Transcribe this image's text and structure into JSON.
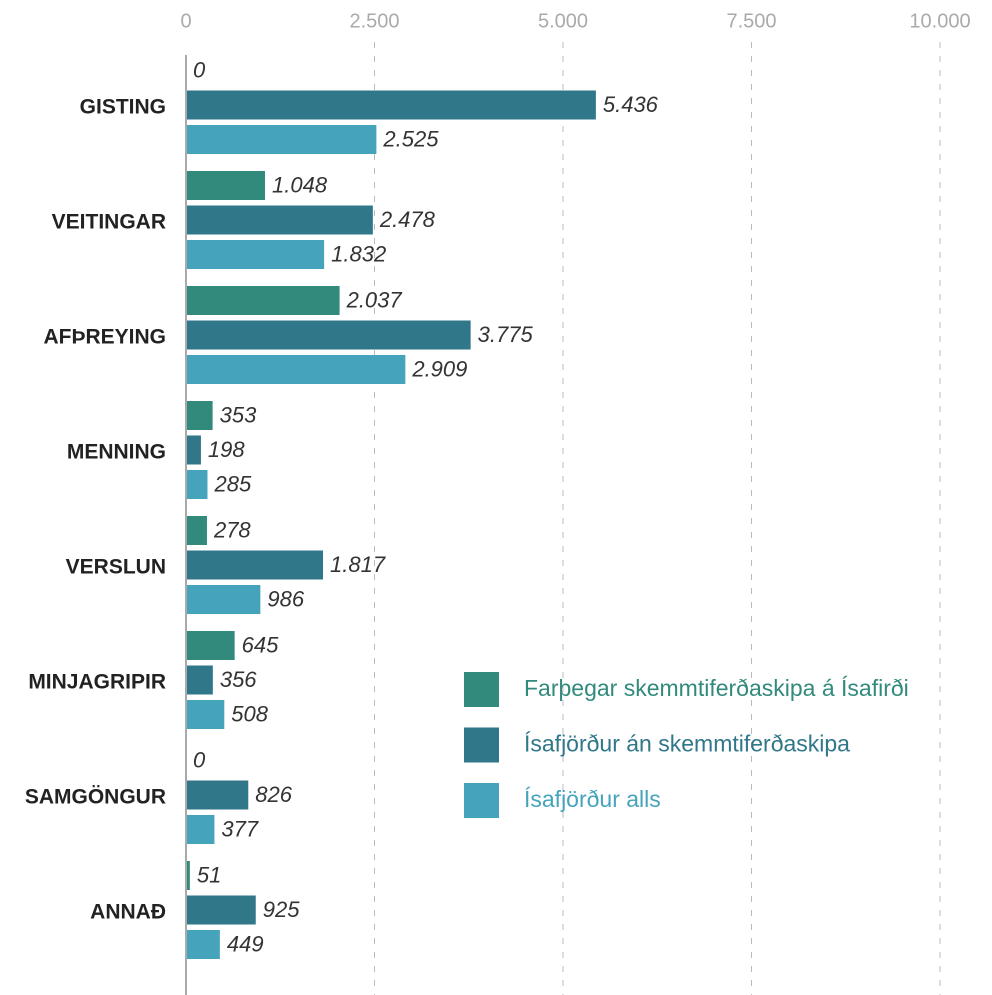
{
  "chart_data": {
    "type": "bar",
    "orientation": "horizontal",
    "categories": [
      "GISTING",
      "VEITINGAR",
      "AFÞREYING",
      "MENNING",
      "VERSLUN",
      "MINJAGRIPIR",
      "SAMGÖNGUR",
      "ANNAÐ"
    ],
    "series": [
      {
        "name": "Farþegar skemmtiferðaskipa á Ísafirði",
        "color": "#318a7c",
        "values": [
          0,
          1048,
          2037,
          353,
          278,
          645,
          0,
          51
        ],
        "value_labels": [
          "0",
          "1.048",
          "2.037",
          "353",
          "278",
          "645",
          "0",
          "51"
        ]
      },
      {
        "name": "Ísafjörður án skemmtiferðaskipa",
        "color": "#2f7789",
        "values": [
          5436,
          2478,
          3775,
          198,
          1817,
          356,
          826,
          925
        ],
        "value_labels": [
          "5.436",
          "2.478",
          "3.775",
          "198",
          "1.817",
          "356",
          "826",
          "925"
        ]
      },
      {
        "name": "Ísafjörður alls",
        "color": "#45a3bb",
        "values": [
          2525,
          1832,
          2909,
          285,
          986,
          508,
          377,
          449
        ],
        "value_labels": [
          "2.525",
          "1.832",
          "2.909",
          "285",
          "986",
          "508",
          "377",
          "449"
        ]
      }
    ],
    "xlim": [
      0,
      10000
    ],
    "xticks": [
      0,
      {
        "value": 2500,
        "label": "2.500"
      },
      {
        "value": 5000,
        "label": "5.000"
      },
      {
        "value": 7500,
        "label": "7.500"
      },
      {
        "value": 10000,
        "label": "10.000"
      }
    ],
    "grid": true,
    "legend": "right"
  }
}
